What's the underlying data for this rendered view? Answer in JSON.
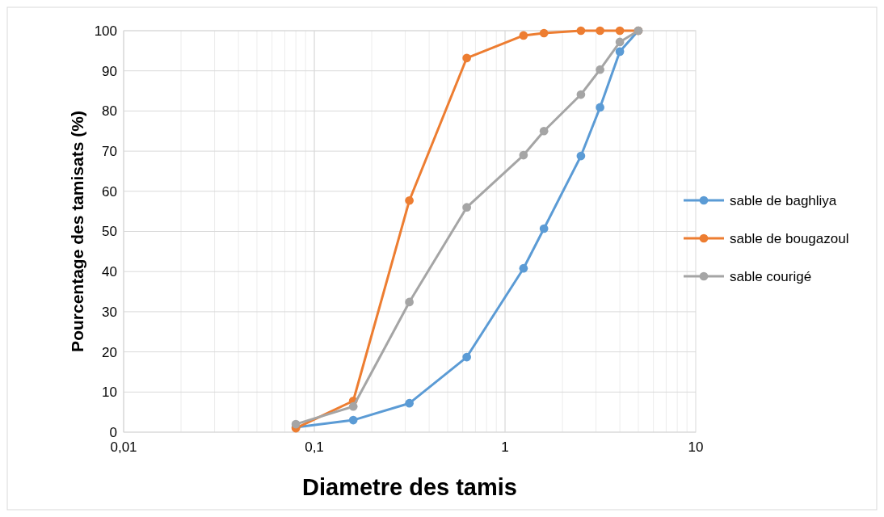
{
  "chart_data": {
    "type": "line",
    "xlabel": "Diametre des tamis",
    "ylabel": "Pourcentage des tamisats (%)",
    "log": "x",
    "grid": true,
    "legend": "right",
    "marker": "circle",
    "line_style": "solid",
    "x": [
      0.08,
      0.16,
      0.315,
      0.63,
      1.25,
      1.6,
      2.5,
      3.15,
      4,
      5
    ],
    "xlim": [
      0.01,
      10
    ],
    "xticks": [
      {
        "value": 0.01,
        "label": "0,01"
      },
      {
        "value": 0.1,
        "label": "0,1"
      },
      1,
      10
    ],
    "ylim": [
      0,
      100
    ],
    "yticks": [
      0,
      10,
      20,
      30,
      40,
      50,
      60,
      70,
      80,
      90,
      100
    ],
    "series": [
      {
        "name": "sable de baghliya",
        "color": "#5b9bd5",
        "values": [
          1.2,
          3,
          7.2,
          18.7,
          40.8,
          50.7,
          68.8,
          80.9,
          94.8,
          100
        ]
      },
      {
        "name": "sable de bougazoul",
        "color": "#ed7d31",
        "values": [
          1,
          7.8,
          57.7,
          93.2,
          98.8,
          99.4,
          100,
          100,
          100,
          100
        ]
      },
      {
        "name": "sable courigé",
        "color": "#a5a5a5",
        "values": [
          2,
          6.4,
          32.4,
          56,
          69,
          75,
          84.1,
          90.3,
          97.2,
          100
        ]
      }
    ]
  }
}
